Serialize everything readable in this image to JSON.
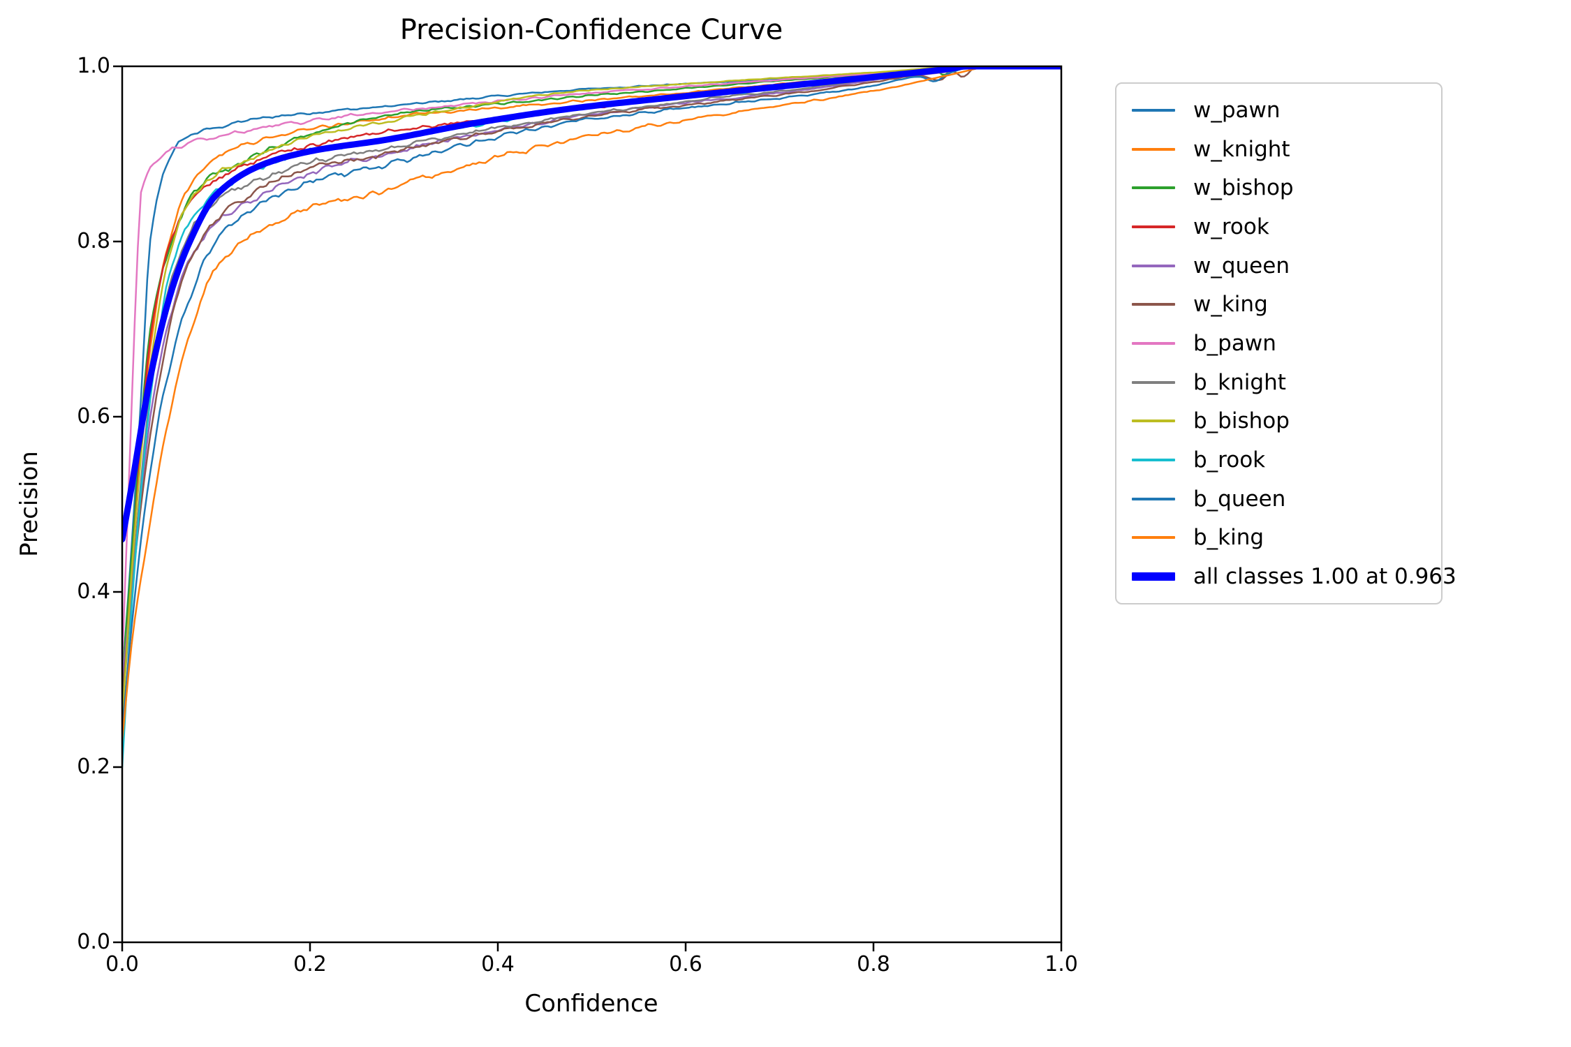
{
  "chart_data": {
    "type": "line",
    "title": "Precision-Confidence Curve",
    "xlabel": "Confidence",
    "ylabel": "Precision",
    "xlim": [
      0.0,
      1.0
    ],
    "ylim": [
      0.0,
      1.0
    ],
    "x_ticks": [
      "0.0",
      "0.2",
      "0.4",
      "0.6",
      "0.8",
      "1.0"
    ],
    "y_ticks": [
      "0.0",
      "0.2",
      "0.4",
      "0.6",
      "0.8",
      "1.0"
    ],
    "grid": false,
    "legend_position": "outside-right",
    "frame_color": "#000000",
    "legend_border_color": "#cccccc",
    "series": [
      {
        "name": "w_pawn",
        "label": "w_pawn",
        "color": "#1f77b4",
        "line_width": 2.5,
        "noise": 0.006,
        "points": [
          [
            0.0,
            0.3
          ],
          [
            0.01,
            0.45
          ],
          [
            0.02,
            0.62
          ],
          [
            0.03,
            0.8
          ],
          [
            0.05,
            0.895
          ],
          [
            0.07,
            0.92
          ],
          [
            0.1,
            0.93
          ],
          [
            0.15,
            0.941
          ],
          [
            0.2,
            0.947
          ],
          [
            0.28,
            0.954
          ],
          [
            0.38,
            0.964
          ],
          [
            0.48,
            0.973
          ],
          [
            0.6,
            0.98
          ],
          [
            0.72,
            0.987
          ],
          [
            0.82,
            0.993
          ],
          [
            0.88,
            0.997
          ],
          [
            0.92,
            1.0
          ],
          [
            1.0,
            1.0
          ]
        ]
      },
      {
        "name": "w_knight",
        "label": "w_knight",
        "color": "#ff7f0e",
        "line_width": 2.5,
        "noise": 0.006,
        "points": [
          [
            0.0,
            0.28
          ],
          [
            0.01,
            0.42
          ],
          [
            0.03,
            0.68
          ],
          [
            0.05,
            0.8
          ],
          [
            0.07,
            0.862
          ],
          [
            0.1,
            0.897
          ],
          [
            0.15,
            0.916
          ],
          [
            0.2,
            0.928
          ],
          [
            0.28,
            0.941
          ],
          [
            0.38,
            0.951
          ],
          [
            0.48,
            0.96
          ],
          [
            0.6,
            0.97
          ],
          [
            0.72,
            0.982
          ],
          [
            0.82,
            0.991
          ],
          [
            0.88,
            0.996
          ],
          [
            0.91,
            1.0
          ],
          [
            1.0,
            1.0
          ]
        ]
      },
      {
        "name": "w_bishop",
        "label": "w_bishop",
        "color": "#2ca02c",
        "line_width": 2.5,
        "noise": 0.006,
        "points": [
          [
            0.0,
            0.3
          ],
          [
            0.01,
            0.44
          ],
          [
            0.03,
            0.7
          ],
          [
            0.05,
            0.79
          ],
          [
            0.07,
            0.845
          ],
          [
            0.1,
            0.876
          ],
          [
            0.15,
            0.902
          ],
          [
            0.2,
            0.922
          ],
          [
            0.28,
            0.944
          ],
          [
            0.38,
            0.955
          ],
          [
            0.48,
            0.965
          ],
          [
            0.6,
            0.975
          ],
          [
            0.72,
            0.985
          ],
          [
            0.82,
            0.992
          ],
          [
            0.865,
            0.996
          ],
          [
            0.875,
            0.99
          ],
          [
            0.885,
            0.997
          ],
          [
            0.9,
            1.0
          ],
          [
            1.0,
            1.0
          ]
        ]
      },
      {
        "name": "w_rook",
        "label": "w_rook",
        "color": "#d62728",
        "line_width": 2.5,
        "noise": 0.006,
        "points": [
          [
            0.0,
            0.27
          ],
          [
            0.01,
            0.42
          ],
          [
            0.03,
            0.69
          ],
          [
            0.05,
            0.795
          ],
          [
            0.07,
            0.843
          ],
          [
            0.1,
            0.87
          ],
          [
            0.15,
            0.895
          ],
          [
            0.2,
            0.91
          ],
          [
            0.28,
            0.925
          ],
          [
            0.38,
            0.939
          ],
          [
            0.48,
            0.951
          ],
          [
            0.6,
            0.965
          ],
          [
            0.72,
            0.978
          ],
          [
            0.82,
            0.989
          ],
          [
            0.88,
            0.995
          ],
          [
            0.91,
            1.0
          ],
          [
            1.0,
            1.0
          ]
        ]
      },
      {
        "name": "w_queen",
        "label": "w_queen",
        "color": "#9467bd",
        "line_width": 2.5,
        "noise": 0.006,
        "points": [
          [
            0.0,
            0.3
          ],
          [
            0.01,
            0.4
          ],
          [
            0.03,
            0.6
          ],
          [
            0.05,
            0.71
          ],
          [
            0.07,
            0.775
          ],
          [
            0.1,
            0.82
          ],
          [
            0.15,
            0.855
          ],
          [
            0.2,
            0.878
          ],
          [
            0.28,
            0.9
          ],
          [
            0.38,
            0.923
          ],
          [
            0.48,
            0.942
          ],
          [
            0.6,
            0.958
          ],
          [
            0.72,
            0.972
          ],
          [
            0.82,
            0.987
          ],
          [
            0.88,
            0.994
          ],
          [
            0.91,
            1.0
          ],
          [
            1.0,
            1.0
          ]
        ]
      },
      {
        "name": "w_king",
        "label": "w_king",
        "color": "#8c564b",
        "line_width": 2.5,
        "noise": 0.006,
        "points": [
          [
            0.0,
            0.28
          ],
          [
            0.01,
            0.4
          ],
          [
            0.03,
            0.58
          ],
          [
            0.05,
            0.7
          ],
          [
            0.07,
            0.772
          ],
          [
            0.1,
            0.826
          ],
          [
            0.15,
            0.862
          ],
          [
            0.2,
            0.884
          ],
          [
            0.28,
            0.901
          ],
          [
            0.38,
            0.922
          ],
          [
            0.48,
            0.941
          ],
          [
            0.6,
            0.956
          ],
          [
            0.72,
            0.97
          ],
          [
            0.8,
            0.982
          ],
          [
            0.85,
            0.989
          ],
          [
            0.87,
            0.984
          ],
          [
            0.885,
            0.994
          ],
          [
            0.895,
            0.988
          ],
          [
            0.91,
            1.0
          ],
          [
            1.0,
            1.0
          ]
        ]
      },
      {
        "name": "b_pawn",
        "label": "b_pawn",
        "color": "#e377c2",
        "line_width": 2.5,
        "noise": 0.006,
        "points": [
          [
            0.0,
            0.32
          ],
          [
            0.008,
            0.55
          ],
          [
            0.015,
            0.75
          ],
          [
            0.02,
            0.855
          ],
          [
            0.04,
            0.895
          ],
          [
            0.07,
            0.912
          ],
          [
            0.1,
            0.92
          ],
          [
            0.15,
            0.93
          ],
          [
            0.2,
            0.938
          ],
          [
            0.28,
            0.948
          ],
          [
            0.38,
            0.958
          ],
          [
            0.48,
            0.968
          ],
          [
            0.6,
            0.977
          ],
          [
            0.72,
            0.986
          ],
          [
            0.82,
            0.993
          ],
          [
            0.88,
            0.998
          ],
          [
            0.9,
            1.0
          ],
          [
            1.0,
            1.0
          ]
        ]
      },
      {
        "name": "b_knight",
        "label": "b_knight",
        "color": "#7f7f7f",
        "line_width": 2.5,
        "noise": 0.006,
        "points": [
          [
            0.0,
            0.26
          ],
          [
            0.01,
            0.4
          ],
          [
            0.03,
            0.63
          ],
          [
            0.05,
            0.745
          ],
          [
            0.07,
            0.805
          ],
          [
            0.1,
            0.845
          ],
          [
            0.15,
            0.872
          ],
          [
            0.2,
            0.89
          ],
          [
            0.28,
            0.906
          ],
          [
            0.38,
            0.926
          ],
          [
            0.48,
            0.944
          ],
          [
            0.6,
            0.96
          ],
          [
            0.72,
            0.974
          ],
          [
            0.82,
            0.988
          ],
          [
            0.88,
            0.995
          ],
          [
            0.91,
            1.0
          ],
          [
            1.0,
            1.0
          ]
        ]
      },
      {
        "name": "b_bishop",
        "label": "b_bishop",
        "color": "#bcbd22",
        "line_width": 2.5,
        "noise": 0.006,
        "points": [
          [
            0.0,
            0.25
          ],
          [
            0.01,
            0.42
          ],
          [
            0.03,
            0.66
          ],
          [
            0.05,
            0.78
          ],
          [
            0.07,
            0.843
          ],
          [
            0.1,
            0.876
          ],
          [
            0.15,
            0.899
          ],
          [
            0.2,
            0.92
          ],
          [
            0.28,
            0.937
          ],
          [
            0.38,
            0.956
          ],
          [
            0.48,
            0.971
          ],
          [
            0.6,
            0.98
          ],
          [
            0.72,
            0.988
          ],
          [
            0.8,
            0.993
          ],
          [
            0.86,
            0.998
          ],
          [
            0.88,
            1.0
          ],
          [
            1.0,
            1.0
          ]
        ]
      },
      {
        "name": "b_rook",
        "label": "b_rook",
        "color": "#17becf",
        "line_width": 2.5,
        "noise": 0.006,
        "points": [
          [
            0.0,
            0.2
          ],
          [
            0.01,
            0.38
          ],
          [
            0.03,
            0.62
          ],
          [
            0.05,
            0.76
          ],
          [
            0.07,
            0.818
          ],
          [
            0.1,
            0.856
          ],
          [
            0.15,
            0.886
          ],
          [
            0.2,
            0.903
          ],
          [
            0.28,
            0.916
          ],
          [
            0.38,
            0.934
          ],
          [
            0.48,
            0.95
          ],
          [
            0.6,
            0.964
          ],
          [
            0.72,
            0.977
          ],
          [
            0.82,
            0.989
          ],
          [
            0.88,
            0.996
          ],
          [
            0.91,
            1.0
          ],
          [
            1.0,
            1.0
          ]
        ]
      },
      {
        "name": "b_queen",
        "label": "b_queen",
        "color": "#1f77b4",
        "line_width": 2.5,
        "noise": 0.006,
        "points": [
          [
            0.0,
            0.24
          ],
          [
            0.01,
            0.36
          ],
          [
            0.03,
            0.54
          ],
          [
            0.05,
            0.655
          ],
          [
            0.07,
            0.73
          ],
          [
            0.1,
            0.8
          ],
          [
            0.15,
            0.845
          ],
          [
            0.2,
            0.868
          ],
          [
            0.28,
            0.888
          ],
          [
            0.38,
            0.914
          ],
          [
            0.48,
            0.937
          ],
          [
            0.6,
            0.952
          ],
          [
            0.72,
            0.966
          ],
          [
            0.8,
            0.978
          ],
          [
            0.85,
            0.988
          ],
          [
            0.865,
            0.983
          ],
          [
            0.88,
            0.992
          ],
          [
            0.91,
            1.0
          ],
          [
            1.0,
            1.0
          ]
        ]
      },
      {
        "name": "b_king",
        "label": "b_king",
        "color": "#ff7f0e",
        "line_width": 2.5,
        "noise": 0.006,
        "points": [
          [
            0.0,
            0.23
          ],
          [
            0.01,
            0.34
          ],
          [
            0.03,
            0.48
          ],
          [
            0.05,
            0.6
          ],
          [
            0.07,
            0.688
          ],
          [
            0.1,
            0.77
          ],
          [
            0.15,
            0.815
          ],
          [
            0.2,
            0.84
          ],
          [
            0.28,
            0.858
          ],
          [
            0.38,
            0.89
          ],
          [
            0.48,
            0.916
          ],
          [
            0.6,
            0.938
          ],
          [
            0.72,
            0.958
          ],
          [
            0.82,
            0.976
          ],
          [
            0.88,
            0.99
          ],
          [
            0.93,
            1.0
          ],
          [
            1.0,
            1.0
          ]
        ]
      },
      {
        "name": "all_classes",
        "label": "all classes 1.00 at 0.963",
        "color": "#0000ff",
        "line_width": 9,
        "noise": 0,
        "points": [
          [
            0.0,
            0.46
          ],
          [
            0.01,
            0.52
          ],
          [
            0.03,
            0.645
          ],
          [
            0.05,
            0.735
          ],
          [
            0.07,
            0.795
          ],
          [
            0.1,
            0.853
          ],
          [
            0.15,
            0.888
          ],
          [
            0.2,
            0.903
          ],
          [
            0.28,
            0.916
          ],
          [
            0.38,
            0.936
          ],
          [
            0.48,
            0.952
          ],
          [
            0.6,
            0.966
          ],
          [
            0.72,
            0.979
          ],
          [
            0.82,
            0.99
          ],
          [
            0.88,
            0.997
          ],
          [
            0.9,
            1.0
          ],
          [
            0.963,
            1.0
          ],
          [
            1.0,
            1.0
          ]
        ]
      }
    ]
  }
}
